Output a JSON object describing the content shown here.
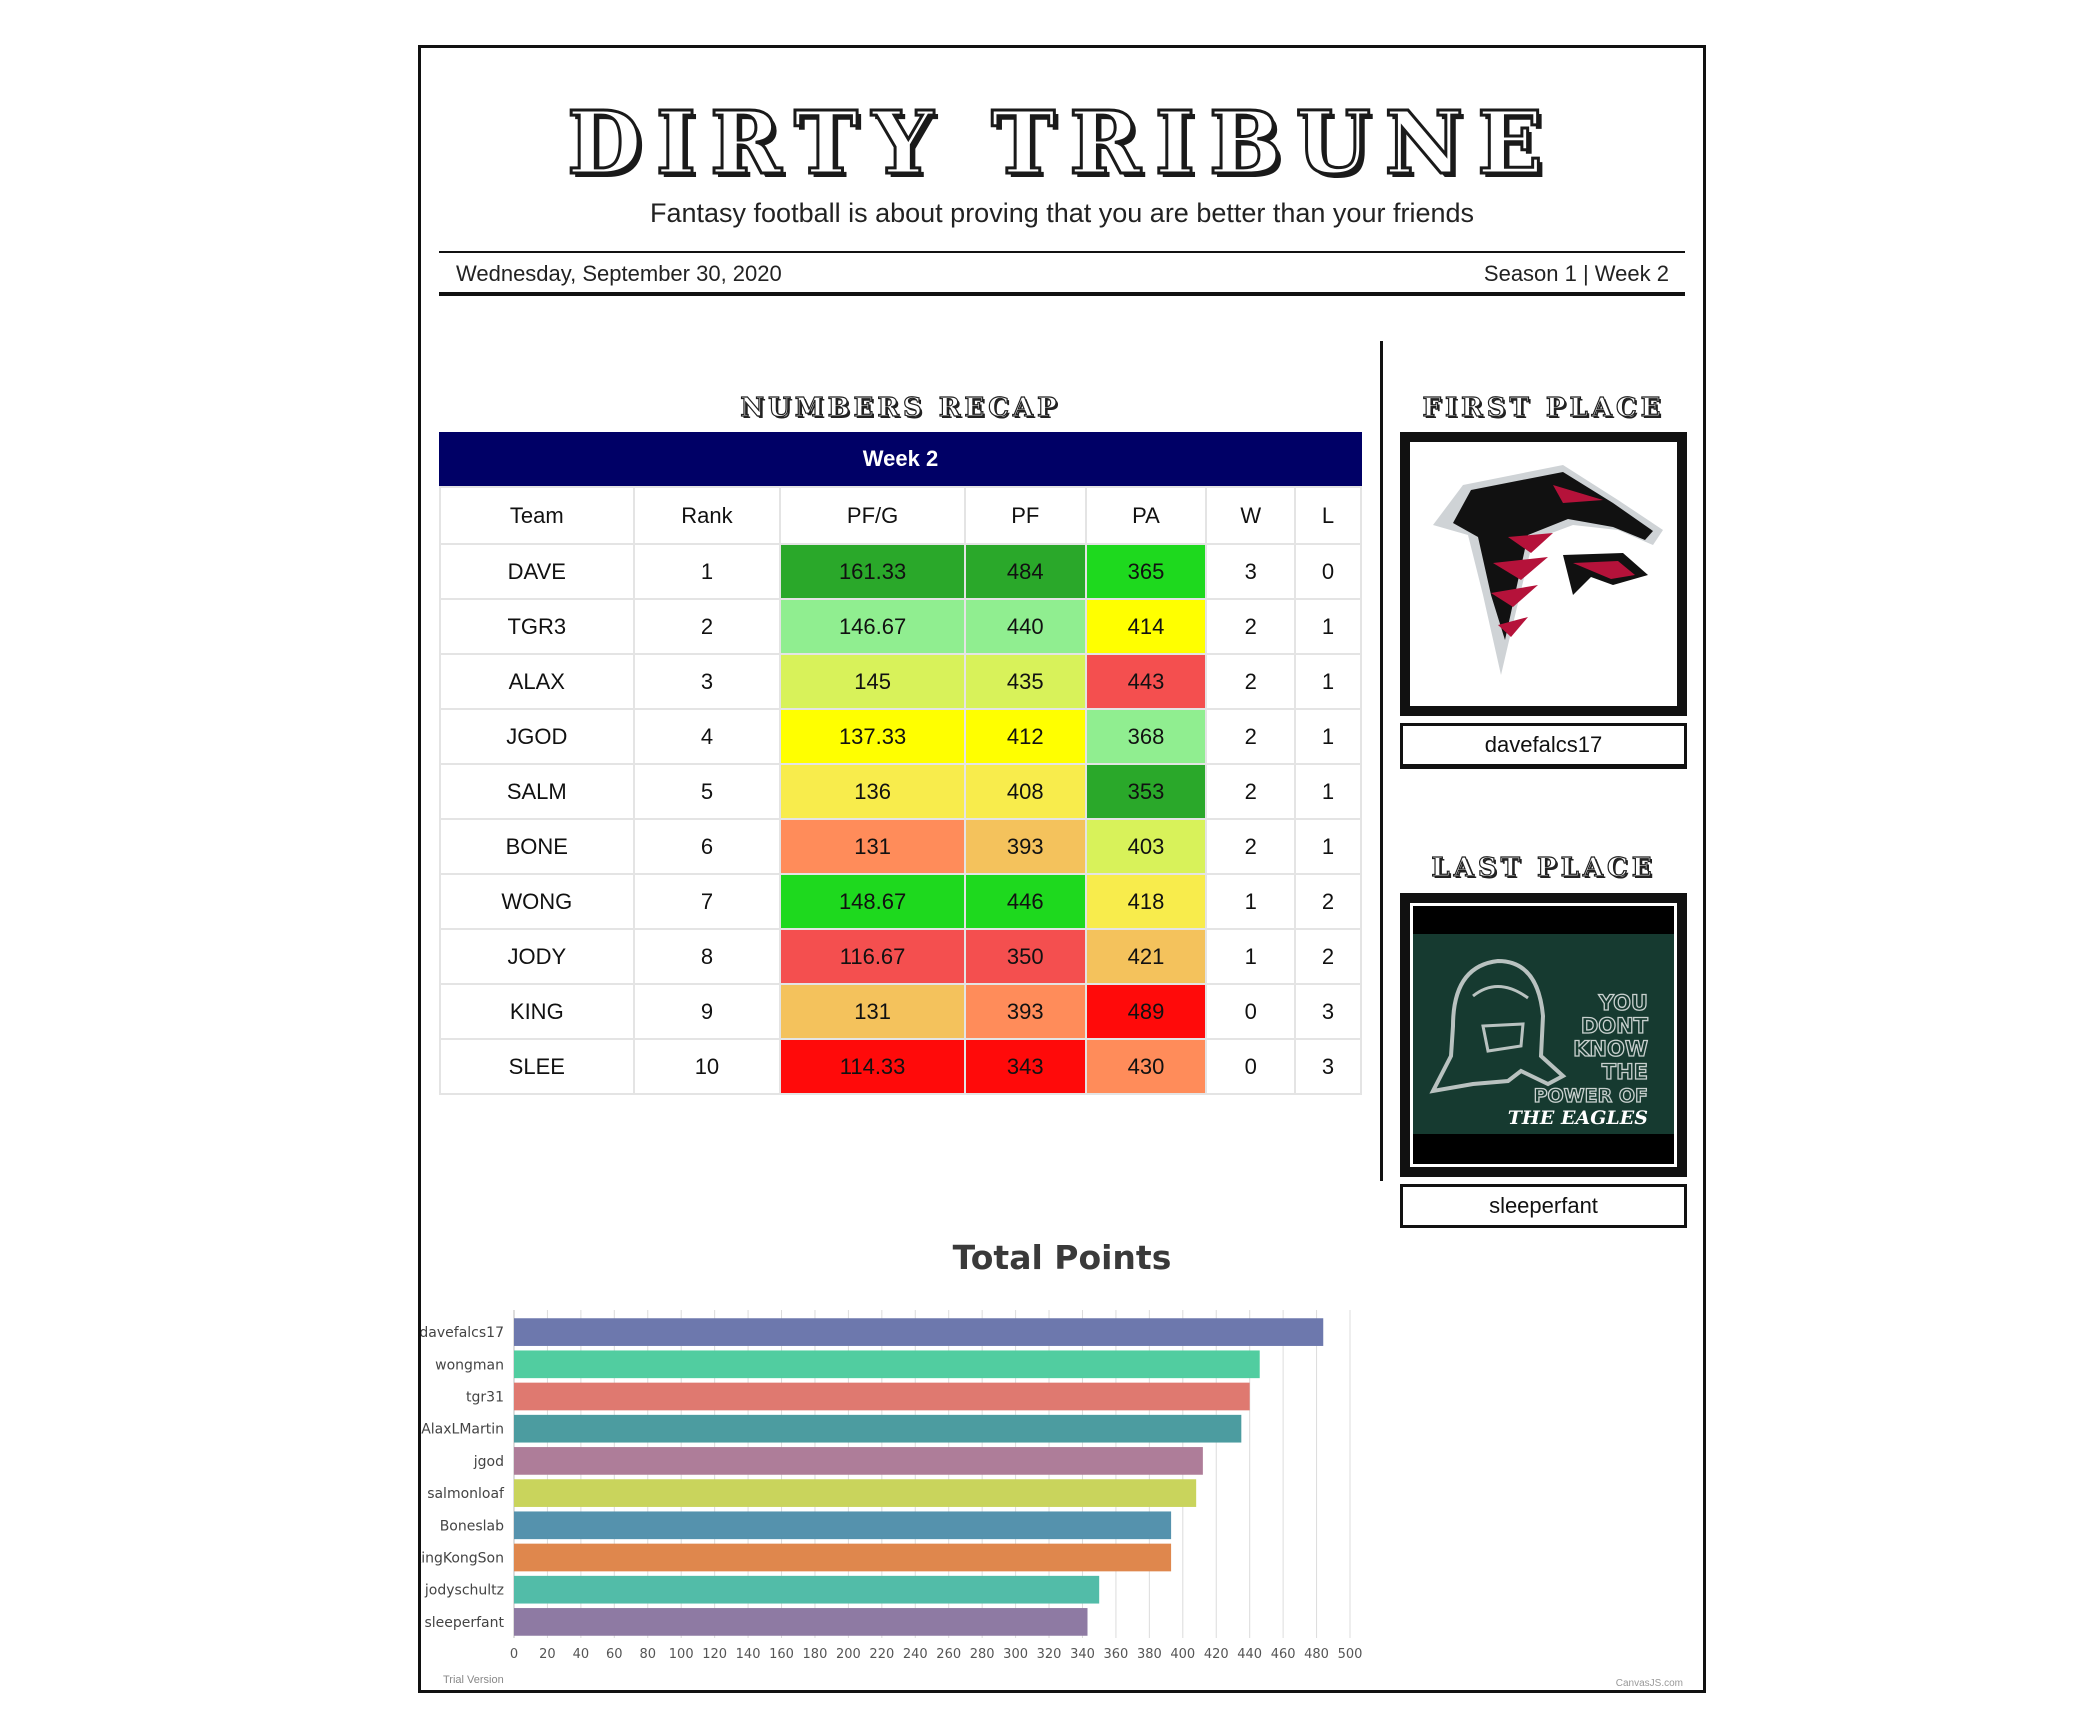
{
  "masthead": {
    "title": "DIRTY TRIBUNE",
    "tagline": "Fantasy football is about proving that you are better than your friends",
    "date": "Wednesday, September 30, 2020",
    "season": "Season 1 | Week 2"
  },
  "recap": {
    "section_title": "NUMBERS RECAP",
    "header": "Week 2",
    "columns": [
      "Team",
      "Rank",
      "PF/G",
      "PF",
      "PA",
      "W",
      "L"
    ],
    "rows": [
      {
        "team": "DAVE",
        "rank": "1",
        "pfg": "161.33",
        "pf": "484",
        "pa": "365",
        "w": "3",
        "l": "0",
        "pfg_color": "#2aa82a",
        "pf_color": "#2aa82a",
        "pa_color": "#1ed91e"
      },
      {
        "team": "TGR3",
        "rank": "2",
        "pfg": "146.67",
        "pf": "440",
        "pa": "414",
        "w": "2",
        "l": "1",
        "pfg_color": "#90ee90",
        "pf_color": "#90ee90",
        "pa_color": "#ffff00"
      },
      {
        "team": "ALAX",
        "rank": "3",
        "pfg": "145",
        "pf": "435",
        "pa": "443",
        "w": "2",
        "l": "1",
        "pfg_color": "#d8f25a",
        "pf_color": "#d8f25a",
        "pa_color": "#f44f4f"
      },
      {
        "team": "JGOD",
        "rank": "4",
        "pfg": "137.33",
        "pf": "412",
        "pa": "368",
        "w": "2",
        "l": "1",
        "pfg_color": "#ffff00",
        "pf_color": "#ffff00",
        "pa_color": "#90ee90"
      },
      {
        "team": "SALM",
        "rank": "5",
        "pfg": "136",
        "pf": "408",
        "pa": "353",
        "w": "2",
        "l": "1",
        "pfg_color": "#f8ec4c",
        "pf_color": "#f8ec4c",
        "pa_color": "#2aa82a"
      },
      {
        "team": "BONE",
        "rank": "6",
        "pfg": "131",
        "pf": "393",
        "pa": "403",
        "w": "2",
        "l": "1",
        "pfg_color": "#ff8c5a",
        "pf_color": "#f4c25c",
        "pa_color": "#d8f25a"
      },
      {
        "team": "WONG",
        "rank": "7",
        "pfg": "148.67",
        "pf": "446",
        "pa": "418",
        "w": "1",
        "l": "2",
        "pfg_color": "#1ed91e",
        "pf_color": "#1ed91e",
        "pa_color": "#f8ec4c"
      },
      {
        "team": "JODY",
        "rank": "8",
        "pfg": "116.67",
        "pf": "350",
        "pa": "421",
        "w": "1",
        "l": "2",
        "pfg_color": "#f44f4f",
        "pf_color": "#f44f4f",
        "pa_color": "#f4c25c"
      },
      {
        "team": "KING",
        "rank": "9",
        "pfg": "131",
        "pf": "393",
        "pa": "489",
        "w": "0",
        "l": "3",
        "pfg_color": "#f4c25c",
        "pf_color": "#ff8c5a",
        "pa_color": "#ff0a0a"
      },
      {
        "team": "SLEE",
        "rank": "10",
        "pfg": "114.33",
        "pf": "343",
        "pa": "430",
        "w": "0",
        "l": "3",
        "pfg_color": "#ff0a0a",
        "pf_color": "#ff0a0a",
        "pa_color": "#ff8c5a"
      }
    ]
  },
  "first_place": {
    "title": "FIRST PLACE",
    "name": "davefalcs17"
  },
  "last_place": {
    "title": "LAST PLACE",
    "name": "sleeperfant",
    "image_text": [
      "YOU",
      "DONT",
      "KNOW",
      "THE",
      "POWER OF",
      "THE EAGLES"
    ]
  },
  "chart_data": {
    "type": "bar",
    "title": "Total Points",
    "categories": [
      "davefalcs17",
      "wongman",
      "tgr31",
      "AlaxLMartin",
      "jgod",
      "salmonloaf",
      "Boneslab",
      "KingKongSon",
      "jodyschultz",
      "sleeperfant"
    ],
    "values": [
      484,
      446,
      440,
      435,
      412,
      408,
      393,
      393,
      350,
      343
    ],
    "colors": [
      "#6d78ad",
      "#51cda0",
      "#df7970",
      "#4c9ca0",
      "#ae7d99",
      "#c9d45c",
      "#5592ad",
      "#df874d",
      "#52bca8",
      "#8e7aa3"
    ],
    "xlim": [
      0,
      500
    ],
    "ticks": [
      "0",
      "20",
      "40",
      "60",
      "80",
      "100",
      "120",
      "140",
      "160",
      "180",
      "200",
      "220",
      "240",
      "260",
      "280",
      "300",
      "320",
      "340",
      "360",
      "380",
      "400",
      "420",
      "440",
      "460",
      "480",
      "500"
    ],
    "grid": true,
    "watermark": "Trial Version",
    "credit": "CanvasJS.com"
  }
}
